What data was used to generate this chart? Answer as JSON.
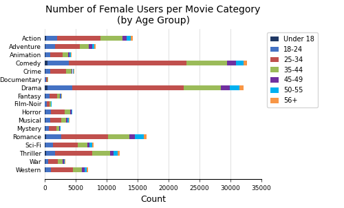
{
  "title": "Number of Female Users per Movie Category\n(by Age Group)",
  "xlabel": "Count",
  "categories": [
    "Action",
    "Adventure",
    "Animation",
    "Comedy",
    "Crime",
    "Documentary",
    "Drama",
    "Fantasy",
    "Film-Noir",
    "Horror",
    "Musical",
    "Mystery",
    "Romance",
    "Sci-Fi",
    "Thriller",
    "War",
    "Western"
  ],
  "age_groups": [
    "Under 18",
    "18-24",
    "25-34",
    "35-44",
    "45-49",
    "50-55",
    "56+"
  ],
  "colors": [
    "#1f3864",
    "#4472c4",
    "#c0504d",
    "#9bbb59",
    "#7030a0",
    "#00b0f0",
    "#f79646"
  ],
  "data": {
    "Action": [
      200,
      1800,
      7000,
      3500,
      700,
      700,
      300
    ],
    "Adventure": [
      150,
      1500,
      4000,
      1500,
      500,
      400,
      200
    ],
    "Animation": [
      100,
      800,
      2000,
      900,
      200,
      200,
      100
    ],
    "Comedy": [
      400,
      3500,
      19000,
      6500,
      1500,
      1200,
      600
    ],
    "Crime": [
      100,
      800,
      2500,
      900,
      200,
      200,
      100
    ],
    "Documentary": [
      30,
      150,
      250,
      100,
      30,
      30,
      20
    ],
    "Drama": [
      400,
      4000,
      18000,
      6000,
      1500,
      1500,
      700
    ],
    "Fantasy": [
      80,
      700,
      1200,
      500,
      100,
      100,
      50
    ],
    "Film-Noir": [
      30,
      250,
      500,
      200,
      50,
      50,
      30
    ],
    "Horror": [
      100,
      900,
      2200,
      900,
      200,
      200,
      100
    ],
    "Musical": [
      80,
      800,
      1800,
      800,
      200,
      200,
      100
    ],
    "Mystery": [
      60,
      600,
      1200,
      500,
      100,
      100,
      50
    ],
    "Romance": [
      200,
      2500,
      7500,
      3500,
      800,
      1500,
      400
    ],
    "Sci-Fi": [
      150,
      1200,
      4000,
      1500,
      400,
      400,
      200
    ],
    "Thriller": [
      200,
      1500,
      6000,
      2800,
      600,
      700,
      300
    ],
    "War": [
      60,
      500,
      1500,
      800,
      200,
      200,
      100
    ],
    "Western": [
      100,
      900,
      3500,
      1500,
      400,
      400,
      200
    ]
  },
  "xlim": [
    0,
    35000
  ],
  "xticks": [
    0,
    5000,
    10000,
    15000,
    20000,
    25000,
    30000,
    35000
  ],
  "figsize": [
    5.0,
    3.02
  ],
  "dpi": 100
}
